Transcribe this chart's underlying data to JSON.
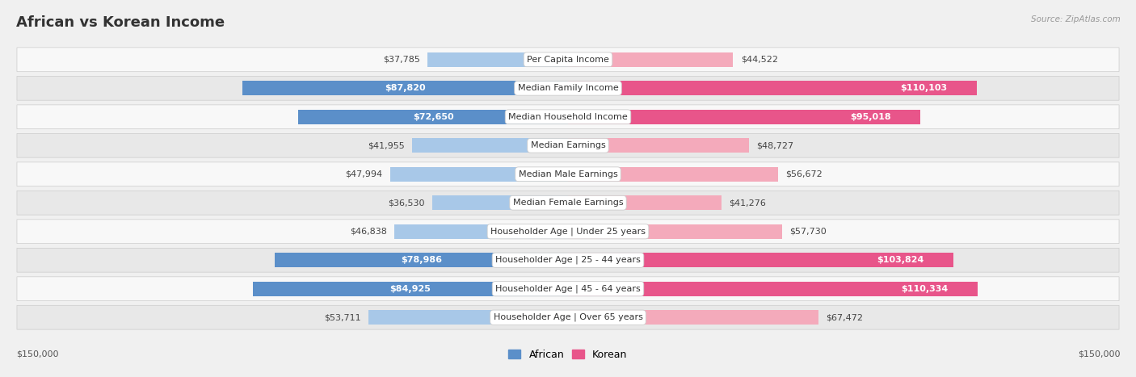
{
  "title": "African vs Korean Income",
  "source": "Source: ZipAtlas.com",
  "categories": [
    "Per Capita Income",
    "Median Family Income",
    "Median Household Income",
    "Median Earnings",
    "Median Male Earnings",
    "Median Female Earnings",
    "Householder Age | Under 25 years",
    "Householder Age | 25 - 44 years",
    "Householder Age | 45 - 64 years",
    "Householder Age | Over 65 years"
  ],
  "african_values": [
    37785,
    87820,
    72650,
    41955,
    47994,
    36530,
    46838,
    78986,
    84925,
    53711
  ],
  "korean_values": [
    44522,
    110103,
    95018,
    48727,
    56672,
    41276,
    57730,
    103824,
    110334,
    67472
  ],
  "african_labels": [
    "$37,785",
    "$87,820",
    "$72,650",
    "$41,955",
    "$47,994",
    "$36,530",
    "$46,838",
    "$78,986",
    "$84,925",
    "$53,711"
  ],
  "korean_labels": [
    "$44,522",
    "$110,103",
    "$95,018",
    "$48,727",
    "$56,672",
    "$41,276",
    "$57,730",
    "$103,824",
    "$110,334",
    "$67,472"
  ],
  "african_large": [
    false,
    true,
    true,
    false,
    false,
    false,
    false,
    true,
    true,
    false
  ],
  "korean_large": [
    false,
    true,
    true,
    false,
    false,
    false,
    false,
    true,
    true,
    false
  ],
  "african_color_dark": "#5B8FC9",
  "african_color_light": "#A8C8E8",
  "korean_color_dark": "#E8558A",
  "korean_color_light": "#F4AABB",
  "max_value": 150000,
  "background_color": "#f0f0f0",
  "row_bg_light": "#f8f8f8",
  "row_bg_dark": "#e8e8e8",
  "title_fontsize": 13,
  "label_fontsize": 8,
  "value_fontsize": 8,
  "axis_label": "$150,000",
  "legend_african": "African",
  "legend_korean": "Korean"
}
